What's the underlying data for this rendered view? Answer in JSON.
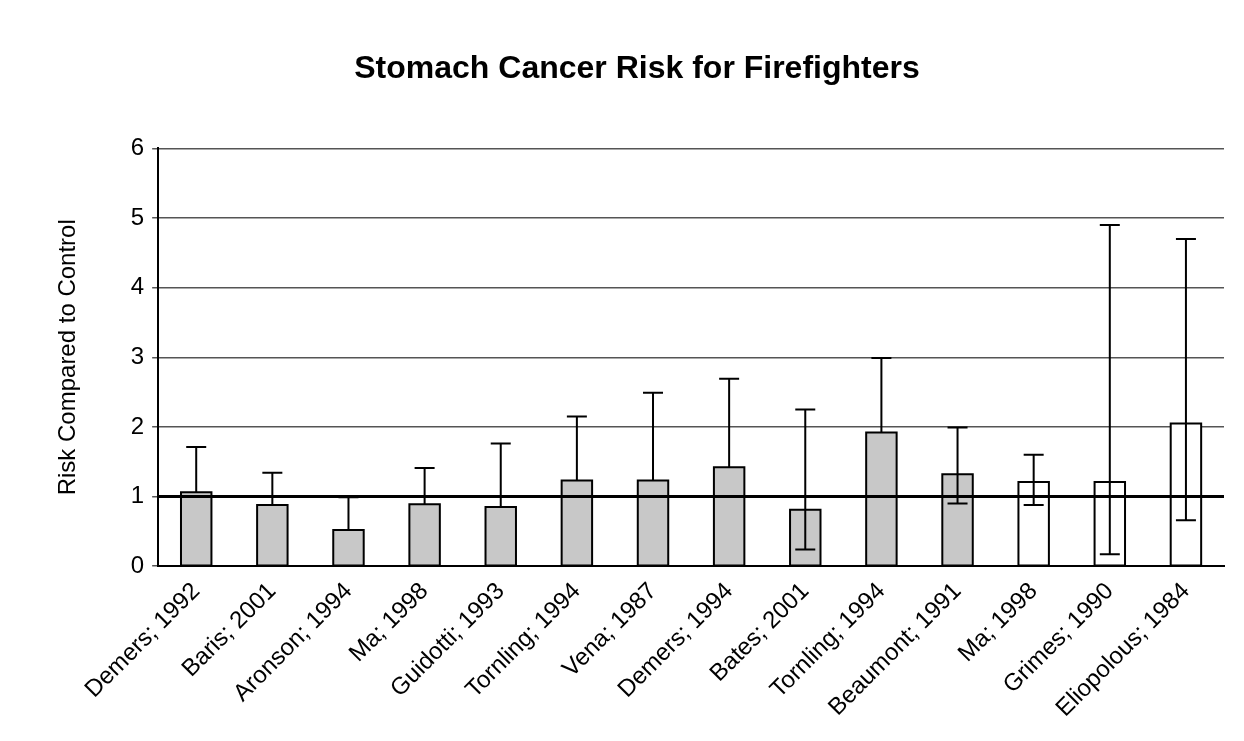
{
  "chart_data": {
    "type": "bar",
    "title": "Stomach Cancer Risk for Firefighters",
    "ylabel": "Risk Compared to Control",
    "categories": [
      "Demers; 1992",
      "Baris; 2001",
      "Aronson; 1994",
      "Ma; 1998",
      "Guidotti; 1993",
      "Tornling; 1994",
      "Vena; 1987",
      "Demers; 1994",
      "Bates; 2001",
      "Tornling; 1994",
      "Beaumont; 1991",
      "Ma; 1998",
      "Grimes; 1990",
      "Eliopolous; 1984"
    ],
    "values": [
      1.06,
      0.88,
      0.52,
      0.89,
      0.85,
      1.23,
      1.23,
      1.42,
      0.81,
      1.92,
      1.32,
      1.21,
      1.21,
      2.05
    ],
    "errors": [
      [
        1.06,
        1.71
      ],
      [
        0.88,
        1.34
      ],
      [
        0.52,
        0.99
      ],
      [
        0.89,
        1.41
      ],
      [
        0.85,
        1.76
      ],
      [
        1.23,
        2.15
      ],
      [
        1.23,
        2.49
      ],
      [
        1.42,
        2.69
      ],
      [
        0.24,
        2.25
      ],
      [
        1.92,
        2.99
      ],
      [
        0.9,
        1.99
      ],
      [
        0.88,
        1.6
      ],
      [
        0.17,
        4.9
      ],
      [
        0.66,
        4.7
      ]
    ],
    "colors": [
      "#c8c8c8",
      "#c8c8c8",
      "#c8c8c8",
      "#c8c8c8",
      "#c8c8c8",
      "#c8c8c8",
      "#c8c8c8",
      "#c8c8c8",
      "#c8c8c8",
      "#c8c8c8",
      "#c8c8c8",
      "#ffffff",
      "#ffffff",
      "#ffffff"
    ],
    "ylim": [
      0,
      6
    ],
    "yticks": [
      0,
      1,
      2,
      3,
      4,
      5,
      6
    ],
    "grid": "y",
    "ref_lines": [
      {
        "axis": "y",
        "value": 1,
        "color": "#000000"
      }
    ]
  }
}
